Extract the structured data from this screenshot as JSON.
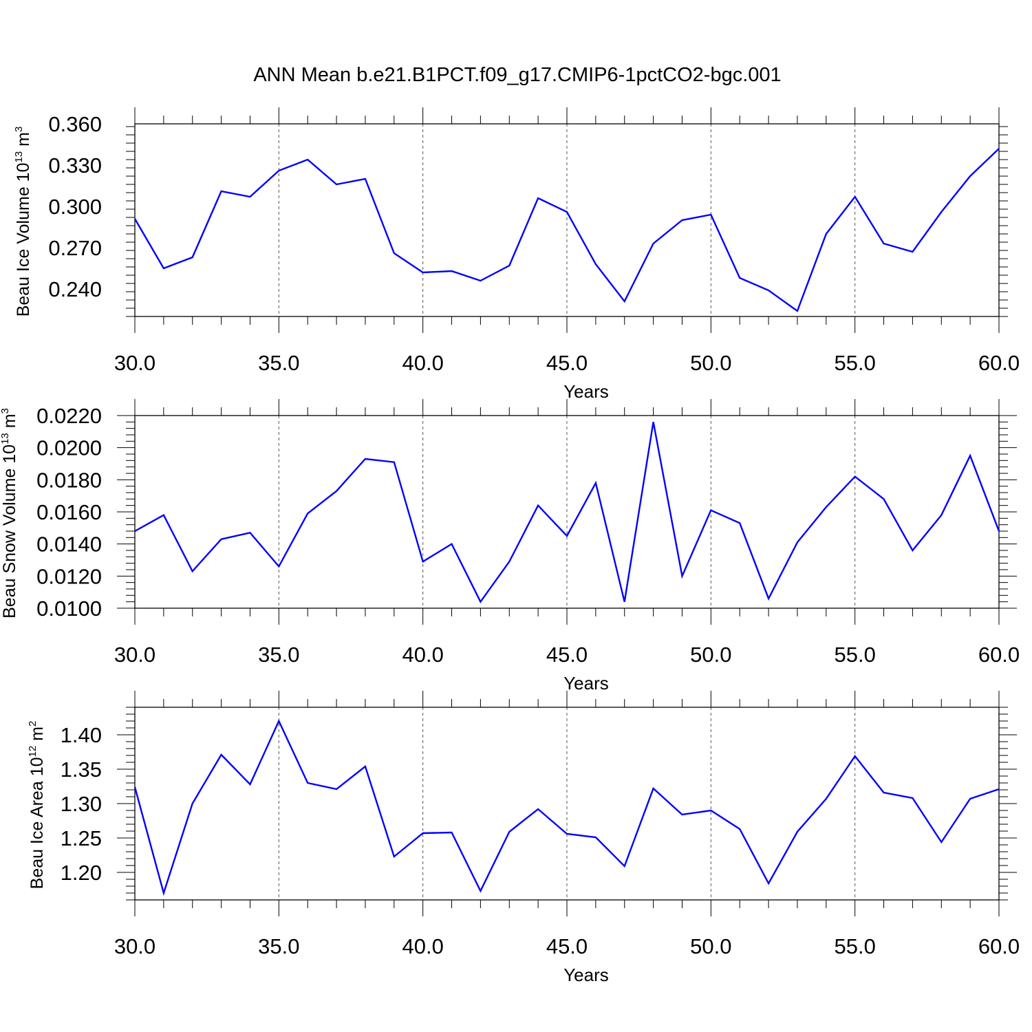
{
  "title": "ANN Mean b.e21.B1PCT.f09_g17.CMIP6-1pctCO2-bgc.001",
  "series_color": "#0000ff",
  "chart_data": [
    {
      "type": "line",
      "ylabel": {
        "pre": "Beau Ice Volume 10",
        "sup": "13",
        "post": " m",
        "sup2": "3"
      },
      "xlabel": "Years",
      "xlim": [
        30,
        60
      ],
      "ylim": [
        0.22,
        0.36
      ],
      "xticks": [
        "30.0",
        "35.0",
        "40.0",
        "45.0",
        "50.0",
        "55.0",
        "60.0"
      ],
      "yticks": [
        0.24,
        0.27,
        0.3,
        0.33,
        0.36
      ],
      "ytick_labels": [
        "0.240",
        "0.270",
        "0.300",
        "0.330",
        "0.360"
      ],
      "x": [
        30,
        31,
        32,
        33,
        34,
        35,
        36,
        37,
        38,
        39,
        40,
        41,
        42,
        43,
        44,
        45,
        46,
        47,
        48,
        49,
        50,
        51,
        52,
        53,
        54,
        55,
        56,
        57,
        58,
        59,
        60
      ],
      "values": [
        0.291,
        0.255,
        0.263,
        0.311,
        0.307,
        0.326,
        0.334,
        0.316,
        0.32,
        0.266,
        0.252,
        0.253,
        0.246,
        0.257,
        0.306,
        0.296,
        0.258,
        0.231,
        0.273,
        0.29,
        0.294,
        0.248,
        0.239,
        0.224,
        0.28,
        0.307,
        0.273,
        0.267,
        0.296,
        0.322,
        0.342
      ]
    },
    {
      "type": "line",
      "ylabel": {
        "pre": "Beau Snow Volume 10",
        "sup": "13",
        "post": " m",
        "sup2": "3"
      },
      "xlabel": "Years",
      "xlim": [
        30,
        60
      ],
      "ylim": [
        0.01,
        0.022
      ],
      "xticks": [
        "30.0",
        "35.0",
        "40.0",
        "45.0",
        "50.0",
        "55.0",
        "60.0"
      ],
      "yticks": [
        0.01,
        0.012,
        0.014,
        0.016,
        0.018,
        0.02,
        0.022
      ],
      "ytick_labels": [
        "0.0100",
        "0.0120",
        "0.0140",
        "0.0160",
        "0.0180",
        "0.0200",
        "0.0220"
      ],
      "x": [
        30,
        31,
        32,
        33,
        34,
        35,
        36,
        37,
        38,
        39,
        40,
        41,
        42,
        43,
        44,
        45,
        46,
        47,
        48,
        49,
        50,
        51,
        52,
        53,
        54,
        55,
        56,
        57,
        58,
        59,
        60
      ],
      "values": [
        0.0148,
        0.0158,
        0.0123,
        0.0143,
        0.0147,
        0.0126,
        0.0159,
        0.0173,
        0.0193,
        0.0191,
        0.0129,
        0.014,
        0.0104,
        0.0129,
        0.0164,
        0.0145,
        0.0178,
        0.0104,
        0.0216,
        0.012,
        0.0161,
        0.0153,
        0.0106,
        0.0141,
        0.0163,
        0.0182,
        0.0168,
        0.0136,
        0.0158,
        0.0195,
        0.0148
      ]
    },
    {
      "type": "line",
      "ylabel": {
        "pre": "Beau Ice Area 10",
        "sup": "12",
        "post": " m",
        "sup2": "2"
      },
      "xlabel": "Years",
      "xlim": [
        30,
        60
      ],
      "ylim": [
        1.16,
        1.44
      ],
      "xticks": [
        "30.0",
        "35.0",
        "40.0",
        "45.0",
        "50.0",
        "55.0",
        "60.0"
      ],
      "yticks": [
        1.2,
        1.25,
        1.3,
        1.35,
        1.4
      ],
      "ytick_labels": [
        "1.20",
        "1.25",
        "1.30",
        "1.35",
        "1.40"
      ],
      "x": [
        30,
        31,
        32,
        33,
        34,
        35,
        36,
        37,
        38,
        39,
        40,
        41,
        42,
        43,
        44,
        45,
        46,
        47,
        48,
        49,
        50,
        51,
        52,
        53,
        54,
        55,
        56,
        57,
        58,
        59,
        60
      ],
      "values": [
        1.324,
        1.17,
        1.3,
        1.371,
        1.328,
        1.42,
        1.33,
        1.321,
        1.354,
        1.223,
        1.257,
        1.258,
        1.173,
        1.259,
        1.292,
        1.256,
        1.251,
        1.209,
        1.322,
        1.284,
        1.29,
        1.263,
        1.184,
        1.259,
        1.307,
        1.369,
        1.316,
        1.308,
        1.244,
        1.307,
        1.321
      ]
    }
  ]
}
